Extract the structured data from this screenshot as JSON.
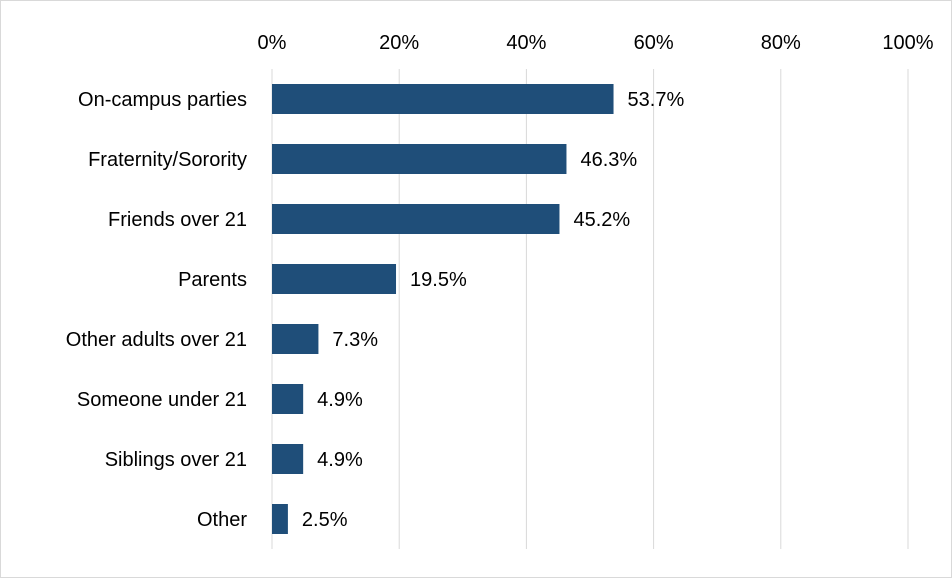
{
  "chart_data": {
    "type": "bar",
    "orientation": "horizontal",
    "title": "",
    "xlabel": "",
    "ylabel": "",
    "categories": [
      "On-campus parties",
      "Fraternity/Sorority",
      "Friends over 21",
      "Parents",
      "Other adults over 21",
      "Someone under 21",
      "Siblings over 21",
      "Other"
    ],
    "values": [
      53.7,
      46.3,
      45.2,
      19.5,
      7.3,
      4.9,
      4.9,
      2.5
    ],
    "value_labels": [
      "53.7%",
      "46.3%",
      "45.2%",
      "19.5%",
      "7.3%",
      "4.9%",
      "4.9%",
      "2.5%"
    ],
    "xlim": [
      0,
      100
    ],
    "x_ticks": [
      0,
      20,
      40,
      60,
      80,
      100
    ],
    "x_tick_labels": [
      "0%",
      "20%",
      "40%",
      "60%",
      "80%",
      "100%"
    ],
    "axis_position": "top",
    "grid": true,
    "legend": "none",
    "bar_color": "#1f4e79",
    "grid_color": "#d9d9d9"
  }
}
